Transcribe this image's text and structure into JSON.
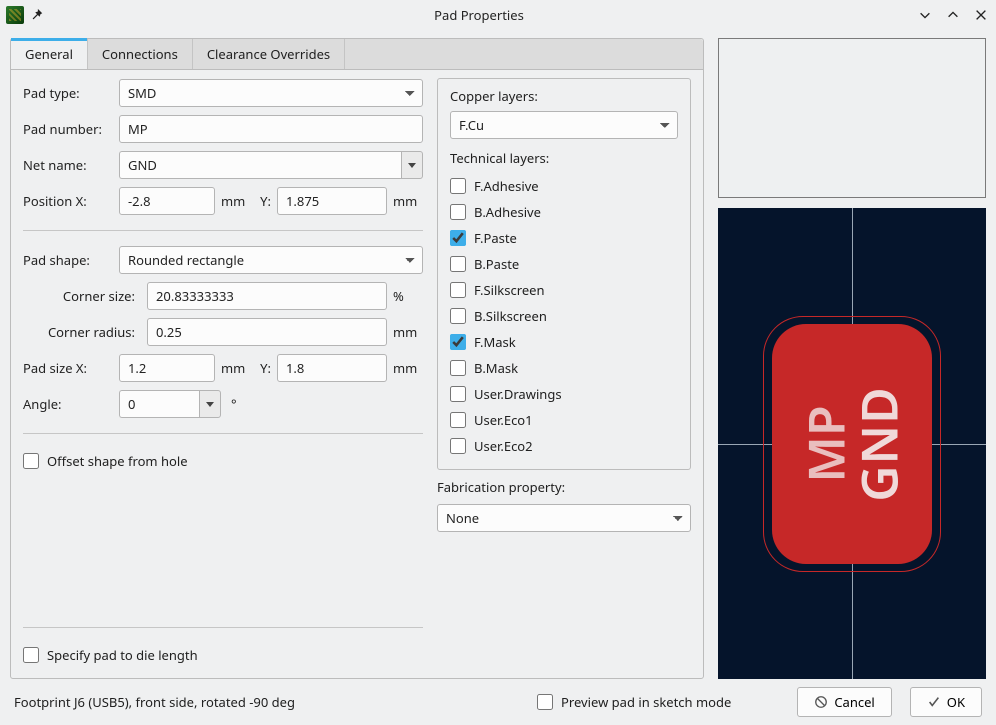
{
  "window": {
    "title": "Pad Properties"
  },
  "tabs": {
    "general": "General",
    "connections": "Connections",
    "clearance": "Clearance Overrides"
  },
  "labels": {
    "pad_type": "Pad type:",
    "pad_number": "Pad number:",
    "net_name": "Net name:",
    "position_x": "Position X:",
    "y": "Y:",
    "mm": "mm",
    "pct": "%",
    "deg": "°",
    "pad_shape": "Pad shape:",
    "corner_size": "Corner size:",
    "corner_radius": "Corner radius:",
    "pad_size_x": "Pad size X:",
    "angle": "Angle:",
    "offset_shape": "Offset shape from hole",
    "specify_die": "Specify pad to die length",
    "copper_layers": "Copper layers:",
    "technical_layers": "Technical layers:",
    "fabrication_property": "Fabrication property:",
    "preview_sketch": "Preview pad in sketch mode"
  },
  "values": {
    "pad_type": "SMD",
    "pad_number": "MP",
    "net_name": "GND",
    "pos_x": "-2.8",
    "pos_y": "1.875",
    "pad_shape": "Rounded rectangle",
    "corner_size": "20.83333333",
    "corner_radius": "0.25",
    "pad_size_x": "1.2",
    "pad_size_y": "1.8",
    "angle": "0",
    "copper_layer": "F.Cu",
    "fabrication_property": "None"
  },
  "tech_layers": [
    {
      "label": "F.Adhesive",
      "checked": false
    },
    {
      "label": "B.Adhesive",
      "checked": false
    },
    {
      "label": "F.Paste",
      "checked": true
    },
    {
      "label": "B.Paste",
      "checked": false
    },
    {
      "label": "F.Silkscreen",
      "checked": false
    },
    {
      "label": "B.Silkscreen",
      "checked": false
    },
    {
      "label": "F.Mask",
      "checked": true
    },
    {
      "label": "B.Mask",
      "checked": false
    },
    {
      "label": "User.Drawings",
      "checked": false
    },
    {
      "label": "User.Eco1",
      "checked": false
    },
    {
      "label": "User.Eco2",
      "checked": false
    }
  ],
  "pad_preview": {
    "bg_color": "#05142b",
    "pad_color": "#c62828",
    "text_top": "MP",
    "text_bottom": "GND"
  },
  "footer": {
    "status": "Footprint J6 (USB5), front side, rotated -90 deg",
    "cancel": "Cancel",
    "ok": "OK"
  }
}
